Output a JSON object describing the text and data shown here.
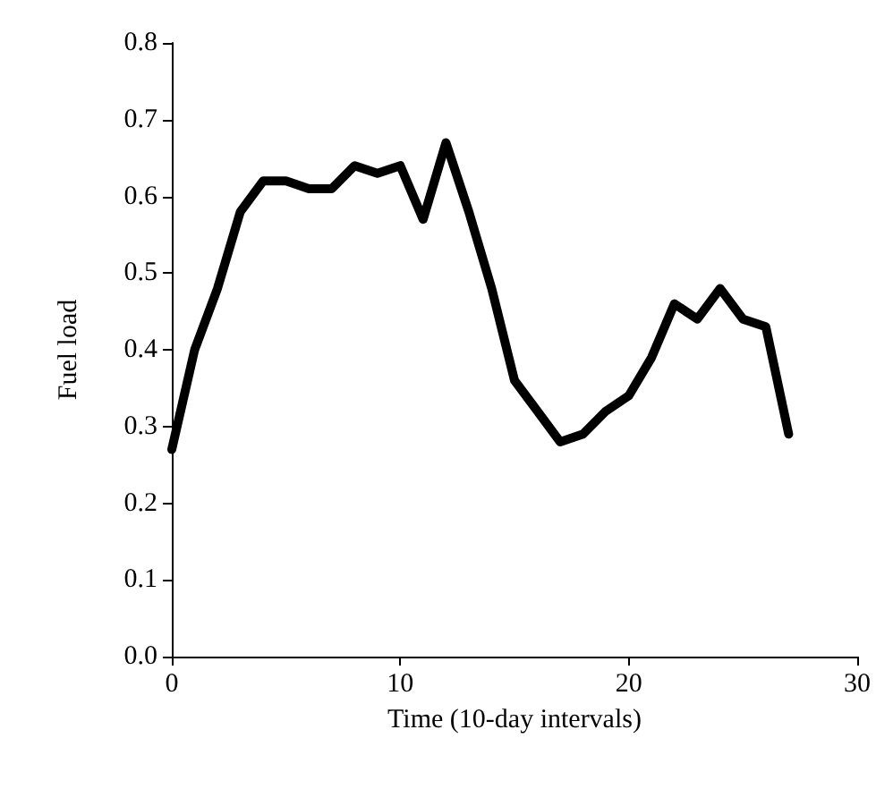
{
  "chart_data": {
    "type": "line",
    "xlabel": "Time (10-day intervals)",
    "ylabel": "Fuel load",
    "x": [
      0,
      1,
      2,
      3,
      4,
      5,
      6,
      7,
      8,
      9,
      10,
      11,
      12,
      13,
      14,
      15,
      16,
      17,
      18,
      19,
      20,
      21,
      22,
      23,
      24,
      25,
      26,
      27
    ],
    "series": [
      {
        "color": "#000000",
        "values": [
          0.27,
          0.4,
          0.48,
          0.58,
          0.62,
          0.62,
          0.61,
          0.61,
          0.64,
          0.63,
          0.64,
          0.57,
          0.67,
          0.58,
          0.48,
          0.36,
          0.32,
          0.28,
          0.29,
          0.32,
          0.34,
          0.39,
          0.46,
          0.44,
          0.48,
          0.44,
          0.43,
          0.29
        ]
      }
    ],
    "xlim": [
      0,
      30
    ],
    "xticks": [
      0,
      10,
      20,
      30
    ],
    "ylim": [
      0,
      0.8
    ],
    "yticks": [
      {
        "value": 0,
        "label": "0.0"
      },
      0.1,
      0.2,
      0.3,
      0.4,
      0.5,
      0.6,
      0.7,
      0.8
    ],
    "grid": false,
    "marker": "none",
    "line_style": "solid"
  }
}
